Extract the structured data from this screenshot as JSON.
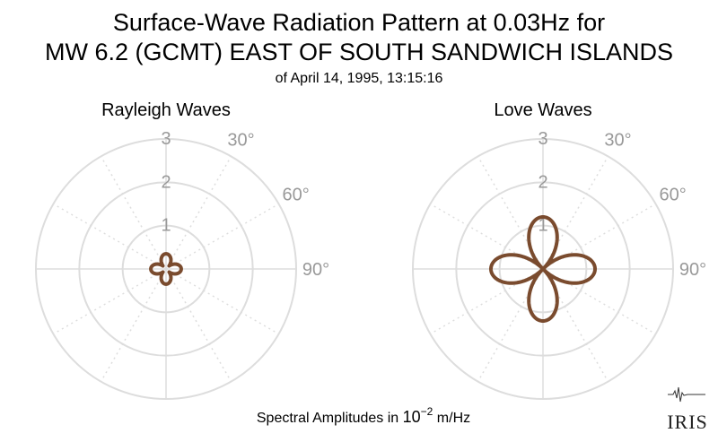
{
  "title": {
    "line1": "Surface-Wave Radiation Pattern at 0.03Hz for",
    "line2": "MW 6.2 (GCMT) EAST OF SOUTH SANDWICH ISLANDS",
    "line3": "of April 14, 1995, 13:15:16"
  },
  "footer": {
    "prefix": "Spectral Amplitudes in ",
    "base": "10",
    "exponent": "−2",
    "unit": " m/Hz"
  },
  "logo": {
    "text": "IRIS"
  },
  "colors": {
    "grid": "#dddddd",
    "tick": "#999999",
    "pattern": "#7a4b2e"
  },
  "chart_data": [
    {
      "type": "polar",
      "title": "Rayleigh Waves",
      "r_ticks": [
        "1",
        "2",
        "3"
      ],
      "r_max": 3,
      "angle_labels": [
        "30°",
        "60°",
        "90°"
      ],
      "grid": true,
      "curve": {
        "type": "lobes",
        "lobes": 4,
        "a": 0.25,
        "b": 0.1
      }
    },
    {
      "type": "polar",
      "title": "Love Waves",
      "r_ticks": [
        "1",
        "2",
        "3"
      ],
      "r_max": 3,
      "angle_labels": [
        "30°",
        "60°",
        "90°"
      ],
      "grid": true,
      "curve": {
        "type": "lobes",
        "lobes": 4,
        "a": 1.2,
        "b": 0.0
      }
    }
  ]
}
